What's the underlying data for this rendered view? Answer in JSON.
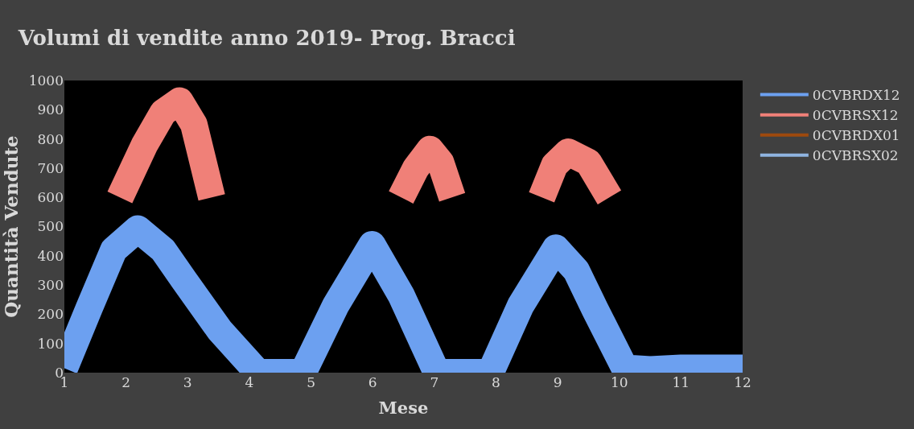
{
  "chart_data": {
    "type": "line",
    "title": "Volumi di vendite anno 2019- Prog. Bracci",
    "xlabel": "Mese",
    "ylabel": "Quantità Vendute",
    "xlim": [
      1,
      12
    ],
    "xticks": [
      1,
      2,
      3,
      4,
      5,
      6,
      7,
      8,
      9,
      10,
      11,
      12
    ],
    "ylim": [
      0,
      1000
    ],
    "yticks": [
      0,
      100,
      200,
      300,
      400,
      500,
      600,
      700,
      800,
      900,
      1000
    ],
    "grid": false,
    "legend": "right",
    "line_style": "solid",
    "marker": "none",
    "series": [
      {
        "name": "0CVBRDX12",
        "color": "#6ca0f0",
        "x": [
          1,
          1.4,
          1.8,
          2.19,
          2.6,
          2.94,
          3.52,
          4.14,
          4.5,
          4.87,
          5.4,
          5.99,
          6.46,
          7.04,
          7.5,
          7.91,
          8.4,
          8.97,
          9.3,
          9.61,
          10.09,
          10.5,
          11,
          12
        ],
        "values": [
          15,
          220,
          420,
          492,
          420,
          317,
          145,
          0,
          0,
          0,
          230,
          438,
          266,
          0,
          0,
          0,
          230,
          426,
          350,
          215,
          15,
          10,
          15,
          15
        ]
      },
      {
        "name": "0CVBRSX12",
        "color": "#f08078",
        "x": [
          1.9,
          2.3,
          2.6,
          2.87,
          3.1,
          3.39,
          5,
          6.46,
          6.7,
          6.93,
          7.1,
          7.29,
          8,
          8.74,
          8.95,
          9.17,
          9.5,
          9.84
        ],
        "values": [
          600,
          780,
          890,
          930,
          850,
          600,
          null,
          600,
          700,
          764,
          720,
          600,
          null,
          600,
          710,
          755,
          720,
          600
        ]
      },
      {
        "name": "0CVBRDX01",
        "color": "#9e4a0e"
      },
      {
        "name": "0CVBRSX02",
        "color": "#8fb4e0"
      }
    ]
  }
}
